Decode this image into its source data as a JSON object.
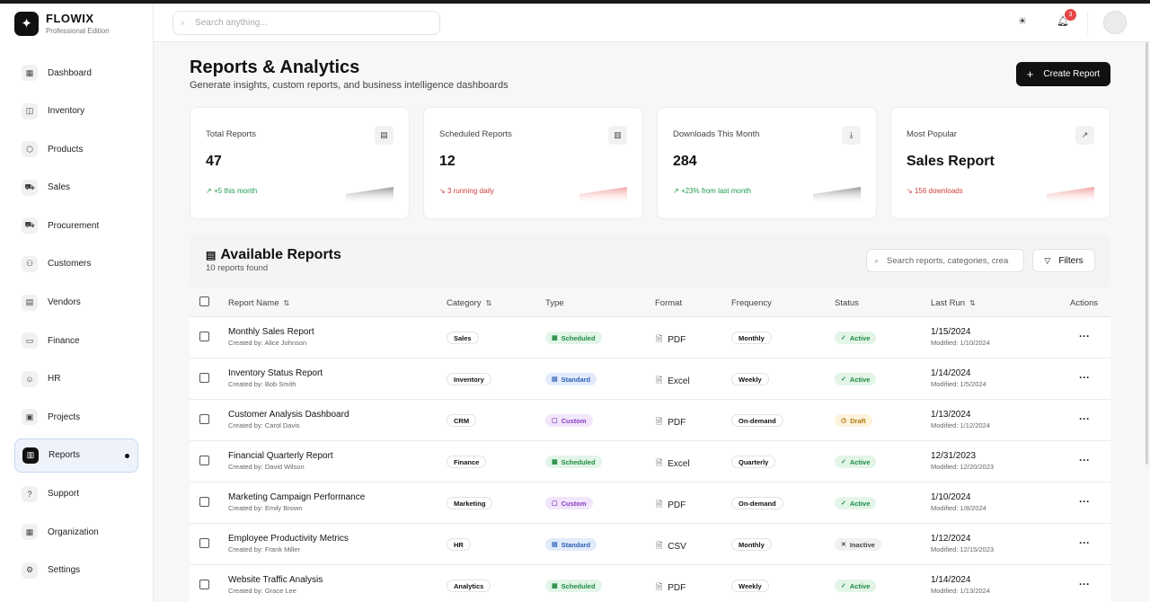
{
  "brand": {
    "name": "FLOWIX",
    "edition": "Professional Edition",
    "logo_icon": "sparkle-icon"
  },
  "sidebar": {
    "items": [
      {
        "label": "Dashboard",
        "icon": "grid-icon",
        "glyph": "▦"
      },
      {
        "label": "Inventory",
        "icon": "box-icon",
        "glyph": "◫"
      },
      {
        "label": "Products",
        "icon": "package-icon",
        "glyph": "⬡"
      },
      {
        "label": "Sales",
        "icon": "cart-icon",
        "glyph": "⛟"
      },
      {
        "label": "Procurement",
        "icon": "truck-icon",
        "glyph": "⛟"
      },
      {
        "label": "Customers",
        "icon": "users-icon",
        "glyph": "⚇"
      },
      {
        "label": "Vendors",
        "icon": "building-icon",
        "glyph": "▤"
      },
      {
        "label": "Finance",
        "icon": "card-icon",
        "glyph": "▭"
      },
      {
        "label": "HR",
        "icon": "user-check-icon",
        "glyph": "☺"
      },
      {
        "label": "Projects",
        "icon": "briefcase-icon",
        "glyph": "▣"
      },
      {
        "label": "Reports",
        "icon": "bar-chart-icon",
        "glyph": "▥",
        "active": true
      },
      {
        "label": "Support",
        "icon": "help-icon",
        "glyph": "?"
      },
      {
        "label": "Organization",
        "icon": "office-icon",
        "glyph": "▦"
      },
      {
        "label": "Settings",
        "icon": "gear-icon",
        "glyph": "⚙"
      }
    ]
  },
  "topbar": {
    "search_placeholder": "Search anything...",
    "notifications_count": "3"
  },
  "page": {
    "title": "Reports & Analytics",
    "subtitle": "Generate insights, custom reports, and business intelligence dashboards",
    "create_label": "Create Report"
  },
  "stats": [
    {
      "label": "Total Reports",
      "value": "47",
      "trend": "+5 this month",
      "direction": "up",
      "icon": "file-icon",
      "glyph": "▤"
    },
    {
      "label": "Scheduled Reports",
      "value": "12",
      "trend": "3 running daily",
      "direction": "down",
      "icon": "bar-chart-icon",
      "glyph": "▥"
    },
    {
      "label": "Downloads This Month",
      "value": "284",
      "trend": "+23% from last month",
      "direction": "up",
      "icon": "download-icon",
      "glyph": "⤓"
    },
    {
      "label": "Most Popular",
      "value": "Sales Report",
      "trend": "156 downloads",
      "direction": "down",
      "icon": "trending-up-icon",
      "glyph": "↗"
    }
  ],
  "table": {
    "title": "Available Reports",
    "count_text": "10 reports found",
    "search_placeholder": "Search reports, categories, crea",
    "filters_label": "Filters",
    "columns": {
      "name": "Report Name",
      "category": "Category",
      "type": "Type",
      "format": "Format",
      "frequency": "Frequency",
      "status": "Status",
      "last_run": "Last Run",
      "actions": "Actions"
    },
    "rows": [
      {
        "name": "Monthly Sales Report",
        "created_by": "Created by: Alice Johnson",
        "category": "Sales",
        "type": "Scheduled",
        "format": "PDF",
        "frequency": "Monthly",
        "status": "Active",
        "last_run": "1/15/2024",
        "modified": "Modified: 1/10/2024"
      },
      {
        "name": "Inventory Status Report",
        "created_by": "Created by: Bob Smith",
        "category": "Inventory",
        "type": "Standard",
        "format": "Excel",
        "frequency": "Weekly",
        "status": "Active",
        "last_run": "1/14/2024",
        "modified": "Modified: 1/5/2024"
      },
      {
        "name": "Customer Analysis Dashboard",
        "created_by": "Created by: Carol Davis",
        "category": "CRM",
        "type": "Custom",
        "format": "PDF",
        "frequency": "On-demand",
        "status": "Draft",
        "last_run": "1/13/2024",
        "modified": "Modified: 1/12/2024"
      },
      {
        "name": "Financial Quarterly Report",
        "created_by": "Created by: David Wilson",
        "category": "Finance",
        "type": "Scheduled",
        "format": "Excel",
        "frequency": "Quarterly",
        "status": "Active",
        "last_run": "12/31/2023",
        "modified": "Modified: 12/20/2023"
      },
      {
        "name": "Marketing Campaign Performance",
        "created_by": "Created by: Emily Brown",
        "category": "Marketing",
        "type": "Custom",
        "format": "PDF",
        "frequency": "On-demand",
        "status": "Active",
        "last_run": "1/10/2024",
        "modified": "Modified: 1/8/2024"
      },
      {
        "name": "Employee Productivity Metrics",
        "created_by": "Created by: Frank Miller",
        "category": "HR",
        "type": "Standard",
        "format": "CSV",
        "frequency": "Monthly",
        "status": "Inactive",
        "last_run": "1/12/2024",
        "modified": "Modified: 12/15/2023"
      },
      {
        "name": "Website Traffic Analysis",
        "created_by": "Created by: Grace Lee",
        "category": "Analytics",
        "type": "Scheduled",
        "format": "PDF",
        "frequency": "Weekly",
        "status": "Active",
        "last_run": "1/14/2024",
        "modified": "Modified: 1/13/2024"
      }
    ]
  },
  "colors": {
    "accent": "#111111",
    "up": "#1d9a4a",
    "down": "#d23b3b",
    "notification": "#e54646"
  }
}
